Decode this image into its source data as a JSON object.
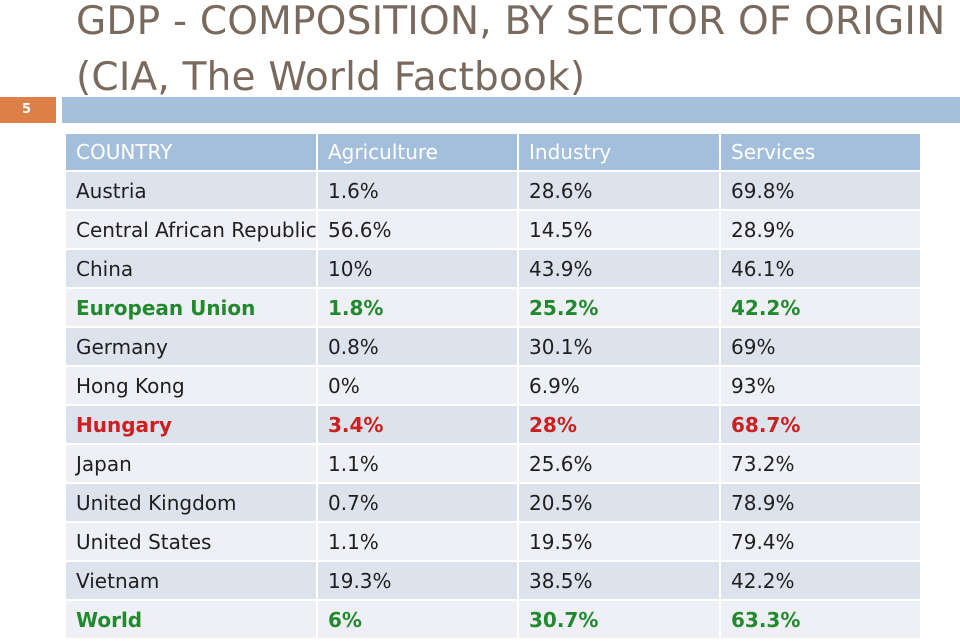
{
  "slide": {
    "title": "GDP - COMPOSITION, BY SECTOR OF ORIGIN (CIA, The World Factbook)",
    "number": "5",
    "accent_color": "#dd8047",
    "rule_color": "#a7c0d9"
  },
  "table": {
    "headers": [
      "COUNTRY",
      "Agriculture",
      "Industry",
      "Services"
    ],
    "rows": [
      {
        "country": "Austria",
        "agriculture": "1.6%",
        "industry": " 28.6%",
        "services": "69.8%",
        "highlight": "none"
      },
      {
        "country": "Central African Republic",
        "agriculture": "56.6%",
        "industry": "14.5%",
        "services": "28.9%",
        "highlight": "none"
      },
      {
        "country": "China",
        "agriculture": "10%",
        "industry": "43.9%",
        "services": "46.1%",
        "highlight": "none"
      },
      {
        "country": "European Union",
        "agriculture": "1.8%",
        "industry": "25.2%",
        "services": "42.2%",
        "highlight": "green"
      },
      {
        "country": "Germany",
        "agriculture": "0.8%",
        "industry": "30.1%",
        "services": "69%",
        "highlight": "none"
      },
      {
        "country": "Hong Kong",
        "agriculture": "0%",
        "industry": "6.9%",
        "services": "93%",
        "highlight": "none"
      },
      {
        "country": "Hungary",
        "agriculture": "3.4%",
        "industry": "28%",
        "services": "68.7%",
        "highlight": "red"
      },
      {
        "country": "Japan",
        "agriculture": "1.1%",
        "industry": "25.6%",
        "services": "73.2%",
        "highlight": "none"
      },
      {
        "country": "United Kingdom",
        "agriculture": "0.7%",
        "industry": "20.5%",
        "services": "78.9%",
        "highlight": "none"
      },
      {
        "country": "United States",
        "agriculture": "1.1%",
        "industry": "19.5%",
        "services": "79.4%",
        "highlight": "none"
      },
      {
        "country": "Vietnam",
        "agriculture": "19.3%",
        "industry": "38.5%",
        "services": "42.2%",
        "highlight": "none"
      },
      {
        "country": "World",
        "agriculture": "6%",
        "industry": "30.7%",
        "services": "63.3%",
        "highlight": "green"
      }
    ],
    "colors": {
      "header_bg": "#a3bfdb",
      "row_dark": "#dde3ec",
      "row_light": "#eef0f5",
      "green_text": "#22892f",
      "red_text": "#cc2020"
    }
  }
}
